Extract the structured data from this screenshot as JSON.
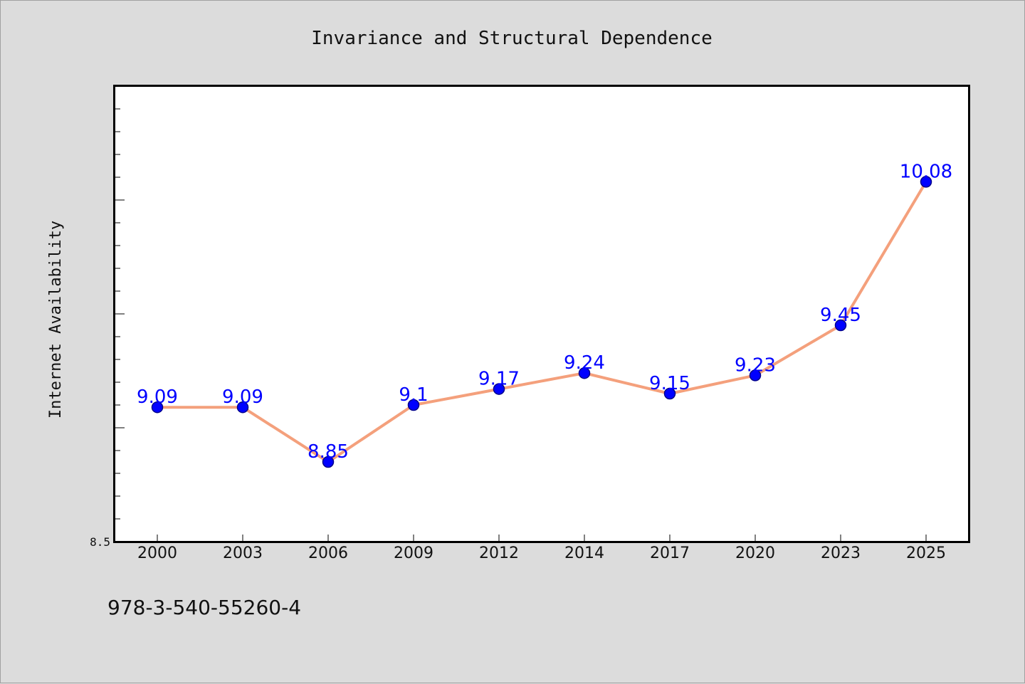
{
  "chart_data": {
    "type": "line",
    "title": "Invariance and Structural Dependence",
    "xlabel": "",
    "ylabel": "Internet Availability",
    "categories": [
      "2000",
      "2003",
      "2006",
      "2009",
      "2012",
      "2014",
      "2017",
      "2020",
      "2023",
      "2025"
    ],
    "series": [
      {
        "values": [
          9.09,
          9.09,
          8.85,
          9.1,
          9.17,
          9.24,
          9.15,
          9.23,
          9.45,
          10.08
        ]
      }
    ],
    "data_labels": [
      "9.09",
      "9.09",
      "8.85",
      "9.1",
      "9.17",
      "9.24",
      "9.15",
      "9.23",
      "9.45",
      "10.08"
    ],
    "ylim": [
      8.5,
      10.5
    ],
    "y_tick_labels": [
      {
        "value": 8.5,
        "label": "8.5"
      }
    ],
    "y_minor_step": 0.1,
    "grid": false,
    "colors": {
      "line": "#f4a07c",
      "marker_fill": "#0000ff",
      "marker_edge": "#00008b",
      "data_label": "#0000ff",
      "plot_background": "#ffffff",
      "figure_background": "#dcdcdc"
    }
  },
  "footer": {
    "isbn": "978-3-540-55260-4"
  }
}
